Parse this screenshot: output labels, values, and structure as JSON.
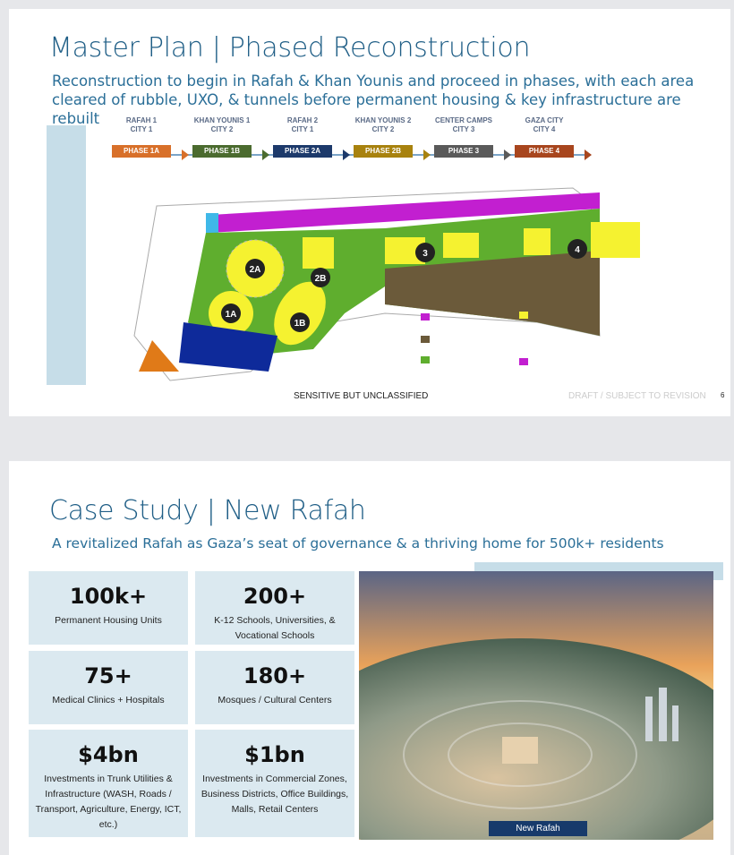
{
  "slide1": {
    "title": "Master Plan | Phased Reconstruction",
    "subtitle_line1": "Reconstruction to begin in Rafah & Khan Younis and proceed in phases, with each area",
    "subtitle_line2": "cleared of rubble, UXO, & tunnels before permanent housing & key infrastructure are rebuilt",
    "phases": [
      {
        "area": "RAFAH 1",
        "city": "CITY 1",
        "label": "PHASE 1A",
        "color": "#d8702a"
      },
      {
        "area": "KHAN YOUNIS 1",
        "city": "CITY 2",
        "label": "PHASE 1B",
        "color": "#4b6b2f"
      },
      {
        "area": "RAFAH 2",
        "city": "CITY 1",
        "label": "PHASE 2A",
        "color": "#1d3a6b"
      },
      {
        "area": "KHAN YOUNIS 2",
        "city": "CITY 2",
        "label": "PHASE 2B",
        "color": "#a8820e"
      },
      {
        "area": "CENTER CAMPS",
        "city": "CITY 3",
        "label": "PHASE 3",
        "color": "#5a5a5a"
      },
      {
        "area": "GAZA CITY",
        "city": "CITY 4",
        "label": "PHASE 4",
        "color": "#a8461e"
      }
    ],
    "map_markers": [
      "1A",
      "1B",
      "2A",
      "2B",
      "3",
      "4"
    ],
    "map_colors": {
      "coastal": "#c21fd0",
      "residential": "#f5f230",
      "industrial": "#6b5a3a",
      "parks": "#5fae2e",
      "port": "#3fb8e8",
      "logistics": "#0e2a9a",
      "crossing": "#e07a18",
      "airport": "#b8b8b8"
    },
    "footer_classification": "SENSITIVE BUT UNCLASSIFIED",
    "footer_draft": "DRAFT / SUBJECT TO REVISION",
    "page_number": "6"
  },
  "slide2": {
    "title": "Case Study | New Rafah",
    "subtitle": "A revitalized Rafah as Gaza’s seat of governance & a thriving home for 500k+ residents",
    "stats": [
      {
        "value": "100k+",
        "desc": "Permanent Housing Units"
      },
      {
        "value": "200+",
        "desc": "K-12 Schools, Universities, & Vocational Schools"
      },
      {
        "value": "75+",
        "desc": "Medical Clinics + Hospitals"
      },
      {
        "value": "180+",
        "desc": "Mosques / Cultural Centers"
      },
      {
        "value": "$4bn",
        "desc": "Investments in Trunk Utilities & Infrastructure (WASH, Roads / Transport, Agriculture, Energy, ICT, etc.)"
      },
      {
        "value": "$1bn",
        "desc": "Investments in Commercial Zones, Business Districts, Office Buildings, Malls, Retail Centers"
      }
    ],
    "image_caption": "New Rafah"
  }
}
